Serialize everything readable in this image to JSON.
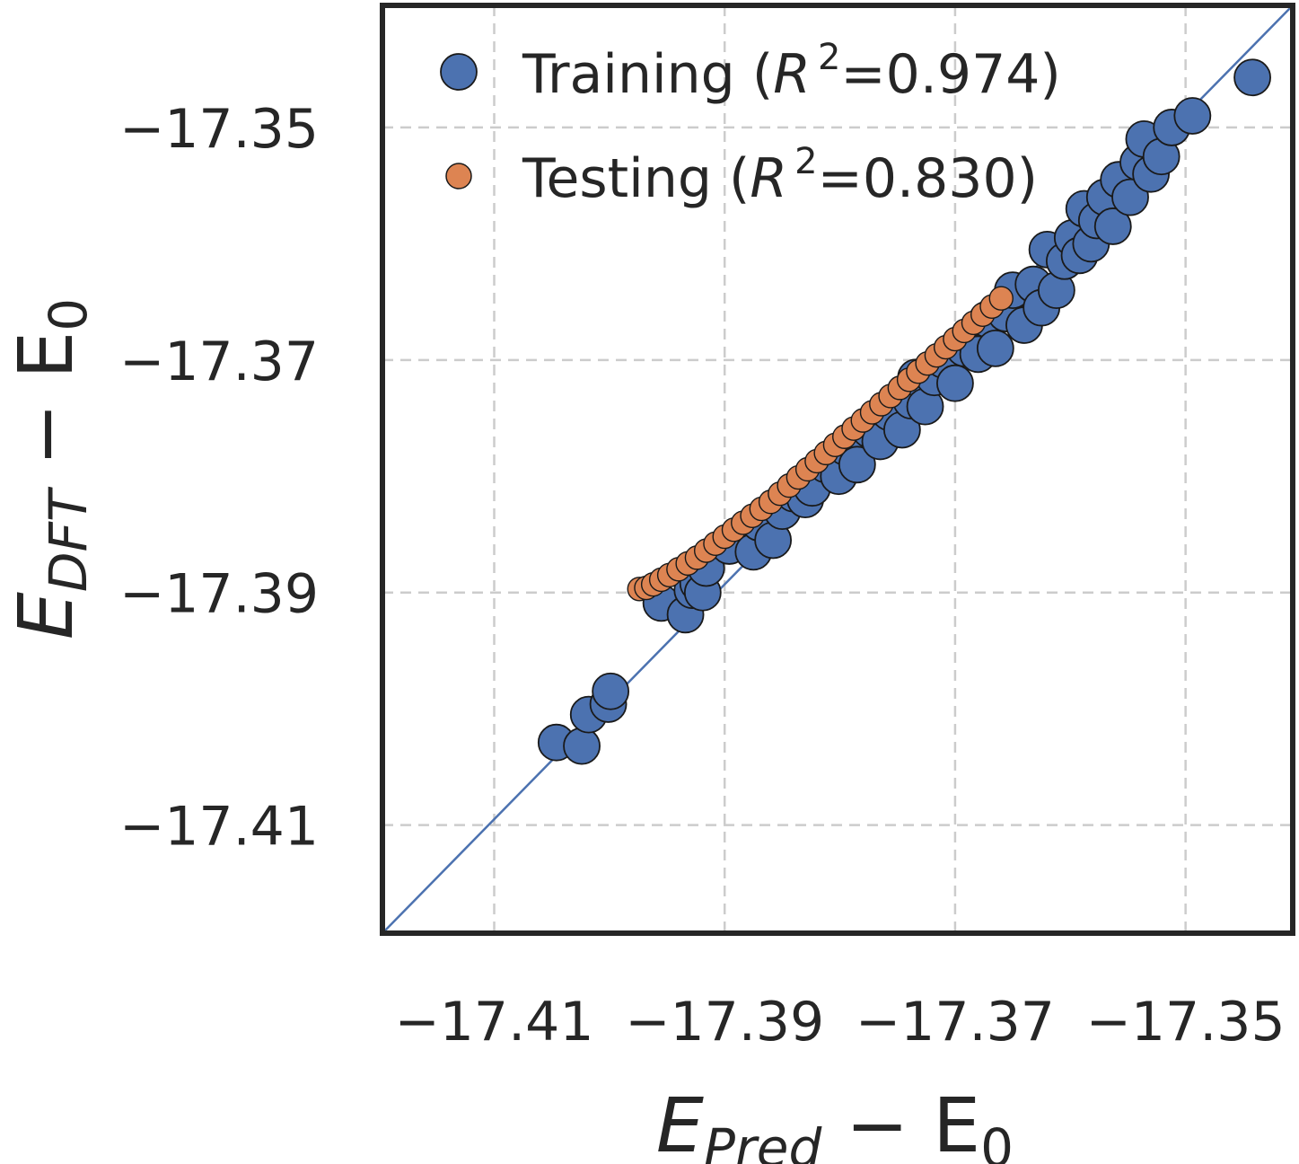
{
  "chart_data": {
    "type": "scatter",
    "title": "",
    "xlabel": {
      "main": "E",
      "sub": "Pred",
      "rest": " − E",
      "rest_sub": "0"
    },
    "ylabel": {
      "main": "E",
      "sub": "DFT",
      "rest": " − E",
      "rest_sub": "0"
    },
    "xlim": [
      -17.4197,
      -17.3407
    ],
    "ylim": [
      -17.4193,
      -17.3395
    ],
    "xticks": [
      -17.41,
      -17.39,
      -17.37,
      -17.35
    ],
    "xtick_labels": [
      "−17.41",
      "−17.39",
      "−17.37",
      "−17.35"
    ],
    "yticks": [
      -17.41,
      -17.39,
      -17.37,
      -17.35
    ],
    "ytick_labels": [
      "−17.41",
      "−17.39",
      "−17.37",
      "−17.35"
    ],
    "grid": true,
    "diagonal_line": true,
    "legend_position": "top-left",
    "colors": {
      "training": "#4c72b0",
      "testing": "#dd8452",
      "diagonal": "#4c72b0",
      "edge": "#1a1a1a"
    },
    "series": [
      {
        "name": "Training",
        "legend": {
          "prefix": "Training (",
          "r": "R",
          "sup": "2",
          "value": "=0.974)"
        },
        "x": [
          -17.4046,
          -17.4024,
          -17.4018,
          -17.4001,
          -17.3999,
          -17.3955,
          -17.3934,
          -17.3928,
          -17.3923,
          -17.3919,
          -17.3916,
          -17.3896,
          -17.3875,
          -17.387,
          -17.3858,
          -17.385,
          -17.384,
          -17.383,
          -17.3824,
          -17.3812,
          -17.3801,
          -17.3795,
          -17.3785,
          -17.3774,
          -17.3765,
          -17.3757,
          -17.3746,
          -17.3738,
          -17.3734,
          -17.3726,
          -17.3718,
          -17.371,
          -17.37,
          -17.3692,
          -17.368,
          -17.3672,
          -17.3665,
          -17.3656,
          -17.365,
          -17.364,
          -17.3632,
          -17.3625,
          -17.362,
          -17.3612,
          -17.3605,
          -17.3598,
          -17.3592,
          -17.3588,
          -17.3582,
          -17.3577,
          -17.357,
          -17.3563,
          -17.3558,
          -17.3548,
          -17.3541,
          -17.3536,
          -17.353,
          -17.3521,
          -17.3512,
          -17.3494,
          -17.3442
        ],
        "y": [
          -17.4029,
          -17.4032,
          -17.4005,
          -17.3996,
          -17.3985,
          -17.3909,
          -17.3919,
          -17.3898,
          -17.3892,
          -17.39,
          -17.3879,
          -17.386,
          -17.3865,
          -17.384,
          -17.3855,
          -17.383,
          -17.3815,
          -17.382,
          -17.381,
          -17.379,
          -17.38,
          -17.3775,
          -17.379,
          -17.376,
          -17.377,
          -17.3745,
          -17.376,
          -17.3735,
          -17.3715,
          -17.374,
          -17.3715,
          -17.37,
          -17.372,
          -17.369,
          -17.3695,
          -17.3665,
          -17.369,
          -17.366,
          -17.364,
          -17.367,
          -17.3635,
          -17.3655,
          -17.3605,
          -17.364,
          -17.3615,
          -17.3595,
          -17.361,
          -17.357,
          -17.36,
          -17.358,
          -17.356,
          -17.3585,
          -17.3545,
          -17.356,
          -17.353,
          -17.351,
          -17.354,
          -17.3525,
          -17.35,
          -17.349,
          -17.3457
        ]
      },
      {
        "name": "Testing",
        "legend": {
          "prefix": "Testing (",
          "r": "R",
          "sup": "2",
          "value": "=0.830)"
        },
        "x": [
          -17.3974,
          -17.3968,
          -17.3962,
          -17.3955,
          -17.3948,
          -17.394,
          -17.3932,
          -17.3924,
          -17.3916,
          -17.3908,
          -17.39,
          -17.3892,
          -17.3884,
          -17.3876,
          -17.3868,
          -17.386,
          -17.3852,
          -17.3844,
          -17.3836,
          -17.3828,
          -17.382,
          -17.3812,
          -17.3804,
          -17.3796,
          -17.3788,
          -17.378,
          -17.3772,
          -17.3764,
          -17.3756,
          -17.3748,
          -17.374,
          -17.3732,
          -17.3724,
          -17.3716,
          -17.3708,
          -17.37,
          -17.3692,
          -17.3684,
          -17.3676,
          -17.3668,
          -17.366
        ],
        "y": [
          -17.3897,
          -17.3896,
          -17.3893,
          -17.3889,
          -17.3885,
          -17.388,
          -17.3875,
          -17.387,
          -17.3864,
          -17.3858,
          -17.3852,
          -17.3846,
          -17.384,
          -17.3834,
          -17.3828,
          -17.3822,
          -17.3815,
          -17.3808,
          -17.3801,
          -17.3794,
          -17.3787,
          -17.378,
          -17.3773,
          -17.3766,
          -17.3759,
          -17.3752,
          -17.3745,
          -17.3738,
          -17.3731,
          -17.3724,
          -17.3717,
          -17.371,
          -17.3703,
          -17.3696,
          -17.3689,
          -17.3682,
          -17.3675,
          -17.3668,
          -17.3661,
          -17.3654,
          -17.3647
        ]
      }
    ]
  }
}
